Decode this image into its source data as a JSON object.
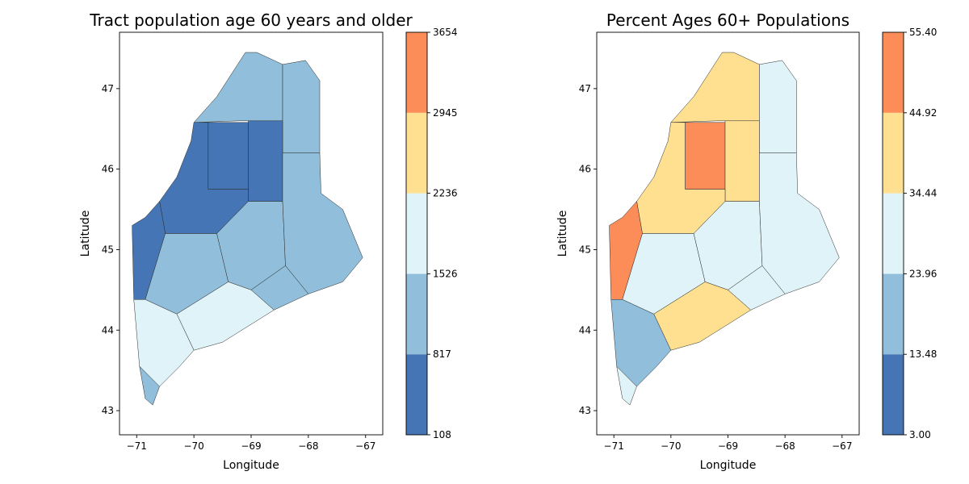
{
  "chart_data": [
    {
      "type": "map",
      "title": "Tract population age 60 years and older",
      "xlabel": "Longitude",
      "ylabel": "Latitude",
      "xticks": [
        "−71",
        "−70",
        "−69",
        "−68",
        "−67"
      ],
      "yticks": [
        "43",
        "44",
        "45",
        "46",
        "47"
      ],
      "xlim": [
        -71.3,
        -66.7
      ],
      "ylim": [
        42.7,
        47.7
      ],
      "colorbar": {
        "boundaries": [
          "108",
          "817",
          "1526",
          "2236",
          "2945",
          "3654"
        ],
        "colors": [
          "#4575b4",
          "#91bfdb",
          "#e0f3f8",
          "#fee090",
          "#fc8d59"
        ]
      },
      "region_classes": {
        "north": 1,
        "aroostook_east": 1,
        "n_tower": 0,
        "n_mid": 0,
        "nw_big": 0,
        "west_band": 0,
        "central_west": 1,
        "central_mid": 1,
        "east_coast": 1,
        "downeast": 1,
        "midcoast": 2,
        "south": 2,
        "york": 1
      }
    },
    {
      "type": "map",
      "title": "Percent Ages 60+ Populations",
      "xlabel": "Longitude",
      "ylabel": "Latitude",
      "xticks": [
        "−71",
        "−70",
        "−69",
        "−68",
        "−67"
      ],
      "yticks": [
        "43",
        "44",
        "45",
        "46",
        "47"
      ],
      "xlim": [
        -71.3,
        -66.7
      ],
      "ylim": [
        42.7,
        47.7
      ],
      "colorbar": {
        "boundaries": [
          "3.00",
          "13.48",
          "23.96",
          "34.44",
          "44.92",
          "55.40"
        ],
        "colors": [
          "#4575b4",
          "#91bfdb",
          "#e0f3f8",
          "#fee090",
          "#fc8d59"
        ]
      },
      "region_classes": {
        "north": 3,
        "aroostook_east": 2,
        "n_tower": 4,
        "n_mid": 3,
        "nw_big": 3,
        "west_band": 4,
        "central_west": 2,
        "central_mid": 2,
        "east_coast": 2,
        "downeast": 2,
        "midcoast": 3,
        "south": 1,
        "york": 2
      }
    }
  ]
}
